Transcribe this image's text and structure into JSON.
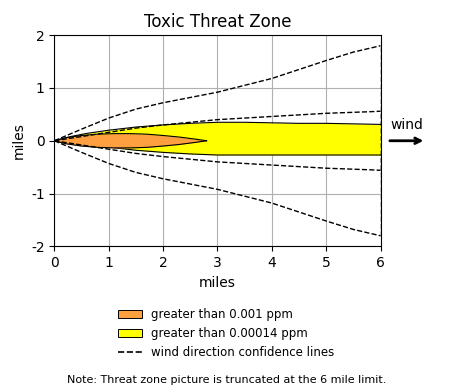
{
  "chart_data": {
    "type": "area",
    "title": "Toxic Threat Zone",
    "x_label": "miles",
    "y_label": "miles",
    "xlim": [
      0,
      6
    ],
    "ylim": [
      -2,
      2
    ],
    "xticks": [
      0,
      1,
      2,
      3,
      4,
      5,
      6
    ],
    "yticks": [
      -2,
      -1,
      0,
      1,
      2
    ],
    "grid": true,
    "legend": "lower center",
    "annotations": [
      "wind",
      "Note: Threat zone picture is truncated at the 6 mile limit."
    ],
    "series": [
      {
        "name": "greater than 0.001 ppm",
        "type": "area",
        "color": "#FFA040",
        "x": [
          0.0,
          0.2,
          0.5,
          0.8,
          1.1,
          1.4,
          1.7,
          2.0,
          2.3,
          2.6,
          2.8
        ],
        "upper": [
          0.0,
          0.055,
          0.1,
          0.125,
          0.135,
          0.135,
          0.125,
          0.1,
          0.07,
          0.03,
          0.0
        ],
        "lower": [
          0.0,
          -0.055,
          -0.1,
          -0.125,
          -0.135,
          -0.135,
          -0.125,
          -0.1,
          -0.07,
          -0.03,
          0.0
        ]
      },
      {
        "name": "greater than 0.00014 ppm",
        "type": "area",
        "color": "#FFFF00",
        "x": [
          0.0,
          0.3,
          0.6,
          1.0,
          1.5,
          2.0,
          2.5,
          3.0,
          3.5,
          4.0,
          4.5,
          5.0,
          5.5,
          6.0
        ],
        "upper": [
          0.0,
          0.08,
          0.14,
          0.2,
          0.26,
          0.3,
          0.33,
          0.35,
          0.35,
          0.34,
          0.33,
          0.33,
          0.32,
          0.31
        ],
        "lower": [
          0.0,
          -0.04,
          -0.08,
          -0.12,
          -0.18,
          -0.22,
          -0.25,
          -0.27,
          -0.27,
          -0.27,
          -0.27,
          -0.27,
          -0.27,
          -0.27
        ]
      },
      {
        "name": "wind direction confidence lines",
        "type": "line",
        "color": "black",
        "line_style": "dashed",
        "lines": [
          {
            "x": [
              0.0,
              0.5,
              1.0,
              1.5,
              2.0,
              2.5,
              3.0,
              3.5,
              4.0,
              4.5,
              5.0,
              5.5,
              6.0
            ],
            "values": [
              0.0,
              0.22,
              0.43,
              0.6,
              0.72,
              0.82,
              0.92,
              1.05,
              1.18,
              1.35,
              1.52,
              1.68,
              1.8
            ]
          },
          {
            "x": [
              0.0,
              0.5,
              1.0,
              1.5,
              2.0,
              2.5,
              3.0,
              3.5,
              4.0,
              4.5,
              5.0,
              5.5,
              6.0
            ],
            "values": [
              0.0,
              -0.22,
              -0.43,
              -0.6,
              -0.72,
              -0.82,
              -0.92,
              -1.05,
              -1.18,
              -1.35,
              -1.52,
              -1.68,
              -1.8
            ]
          },
          {
            "x": [
              0.0,
              0.5,
              1.0,
              1.5,
              2.0,
              2.5,
              3.0,
              4.0,
              5.0,
              5.8,
              6.0
            ],
            "values": [
              0.0,
              0.08,
              0.16,
              0.24,
              0.3,
              0.35,
              0.4,
              0.46,
              0.52,
              0.55,
              0.56
            ]
          },
          {
            "x": [
              0.0,
              0.5,
              1.0,
              1.5,
              2.0,
              2.5,
              3.0,
              4.0,
              5.0,
              5.8,
              6.0
            ],
            "values": [
              0.0,
              -0.08,
              -0.16,
              -0.24,
              -0.3,
              -0.35,
              -0.4,
              -0.46,
              -0.52,
              -0.55,
              -0.56
            ]
          },
          {
            "x": [
              6.0,
              6.0
            ],
            "values": [
              -1.8,
              1.8
            ]
          },
          {
            "x": [
              6.0,
              6.0
            ],
            "values": [
              -0.56,
              0.56
            ]
          }
        ]
      }
    ]
  }
}
